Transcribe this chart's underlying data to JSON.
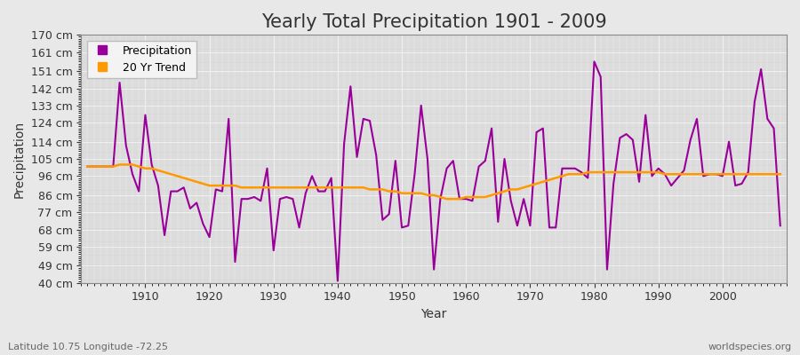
{
  "title": "Yearly Total Precipitation 1901 - 2009",
  "xlabel": "Year",
  "ylabel": "Precipitation",
  "subtitle": "Latitude 10.75 Longitude -72.25",
  "watermark": "worldspecies.org",
  "bg_color": "#e8e8e8",
  "plot_bg_color": "#d8d8d8",
  "grid_color": "#f0f0f0",
  "precip_color": "#990099",
  "trend_color": "#ff9900",
  "precip_label": "Precipitation",
  "trend_label": "20 Yr Trend",
  "years": [
    1901,
    1902,
    1903,
    1904,
    1905,
    1906,
    1907,
    1908,
    1909,
    1910,
    1911,
    1912,
    1913,
    1914,
    1915,
    1916,
    1917,
    1918,
    1919,
    1920,
    1921,
    1922,
    1923,
    1924,
    1925,
    1926,
    1927,
    1928,
    1929,
    1930,
    1931,
    1932,
    1933,
    1934,
    1935,
    1936,
    1937,
    1938,
    1939,
    1940,
    1941,
    1942,
    1943,
    1944,
    1945,
    1946,
    1947,
    1948,
    1949,
    1950,
    1951,
    1952,
    1953,
    1954,
    1955,
    1956,
    1957,
    1958,
    1959,
    1960,
    1961,
    1962,
    1963,
    1964,
    1965,
    1966,
    1967,
    1968,
    1969,
    1970,
    1971,
    1972,
    1973,
    1974,
    1975,
    1976,
    1977,
    1978,
    1979,
    1980,
    1981,
    1982,
    1983,
    1984,
    1985,
    1986,
    1987,
    1988,
    1989,
    1990,
    1991,
    1992,
    1993,
    1994,
    1995,
    1996,
    1997,
    1998,
    1999,
    2000,
    2001,
    2002,
    2003,
    2004,
    2005,
    2006,
    2007,
    2008,
    2009
  ],
  "precip": [
    101,
    101,
    101,
    101,
    101,
    145,
    112,
    97,
    88,
    128,
    102,
    91,
    65,
    88,
    88,
    90,
    79,
    82,
    71,
    64,
    89,
    88,
    126,
    51,
    84,
    84,
    85,
    83,
    100,
    57,
    84,
    85,
    84,
    69,
    87,
    96,
    88,
    88,
    95,
    41,
    113,
    143,
    106,
    126,
    125,
    107,
    73,
    76,
    104,
    69,
    70,
    97,
    133,
    105,
    47,
    84,
    100,
    104,
    84,
    84,
    83,
    101,
    104,
    121,
    72,
    105,
    83,
    70,
    84,
    70,
    119,
    121,
    69,
    69,
    100,
    100,
    100,
    98,
    95,
    156,
    148,
    47,
    92,
    116,
    118,
    115,
    93,
    128,
    96,
    100,
    97,
    91,
    95,
    99,
    115,
    126,
    96,
    97,
    97,
    96,
    114,
    91,
    92,
    98,
    135,
    152,
    126,
    121,
    70
  ],
  "trend": [
    101,
    101,
    101,
    101,
    101,
    102,
    102,
    102,
    101,
    100,
    100,
    99,
    98,
    97,
    96,
    95,
    94,
    93,
    92,
    91,
    91,
    91,
    91,
    91,
    90,
    90,
    90,
    90,
    90,
    90,
    90,
    90,
    90,
    90,
    90,
    90,
    90,
    90,
    90,
    90,
    90,
    90,
    90,
    90,
    89,
    89,
    89,
    88,
    88,
    87,
    87,
    87,
    87,
    86,
    86,
    85,
    84,
    84,
    84,
    85,
    85,
    85,
    85,
    86,
    87,
    88,
    89,
    89,
    90,
    91,
    92,
    93,
    94,
    95,
    96,
    97,
    97,
    97,
    98,
    98,
    98,
    98,
    98,
    98,
    98,
    98,
    98,
    98,
    98,
    98,
    97,
    97,
    97,
    97,
    97,
    97,
    97,
    97,
    97,
    97,
    97,
    97,
    97,
    97,
    97,
    97,
    97,
    97,
    97
  ],
  "ylim": [
    40,
    170
  ],
  "yticks": [
    40,
    49,
    59,
    68,
    77,
    86,
    96,
    105,
    114,
    124,
    133,
    142,
    151,
    161,
    170
  ],
  "xticks": [
    1910,
    1920,
    1930,
    1940,
    1950,
    1960,
    1970,
    1980,
    1990,
    2000
  ],
  "xlim_left": 1900,
  "xlim_right": 2010,
  "title_fontsize": 15,
  "axis_label_fontsize": 10,
  "tick_fontsize": 9,
  "legend_fontsize": 9,
  "linewidth_precip": 1.5,
  "linewidth_trend": 1.8
}
